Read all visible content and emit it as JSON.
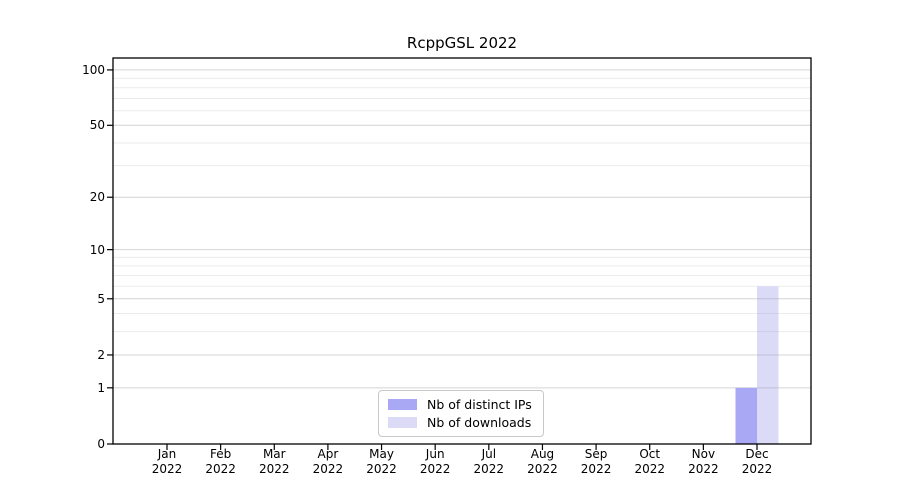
{
  "chart_data": {
    "type": "bar",
    "title": "RcppGSL 2022",
    "categories": [
      "Jan",
      "Feb",
      "Mar",
      "Apr",
      "May",
      "Jun",
      "Jul",
      "Aug",
      "Sep",
      "Oct",
      "Nov",
      "Dec"
    ],
    "year": "2022",
    "series": [
      {
        "name": "Nb of distinct IPs",
        "color": "#a8a8f5",
        "values": [
          0,
          0,
          0,
          0,
          0,
          0,
          0,
          0,
          0,
          0,
          0,
          1
        ]
      },
      {
        "name": "Nb of downloads",
        "color": "#dbdbf8",
        "values": [
          0,
          0,
          0,
          0,
          0,
          0,
          0,
          0,
          0,
          0,
          0,
          6
        ]
      }
    ],
    "yscale": "log1p",
    "major_yticks": [
      0,
      1,
      2,
      5,
      10,
      20,
      50,
      100
    ],
    "minor_yticks": [
      3,
      4,
      6,
      7,
      8,
      9,
      30,
      40,
      60,
      70,
      80,
      90
    ],
    "ylim": [
      0,
      116
    ],
    "grid": true,
    "legend_position": "lower center",
    "colors": {
      "major_grid": "#d4d4d4",
      "minor_grid": "#ebebeb",
      "spine": "#000000",
      "background": "#ffffff"
    }
  }
}
